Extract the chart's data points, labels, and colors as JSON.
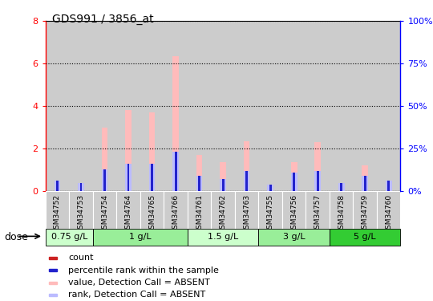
{
  "title": "GDS991 / 3856_at",
  "samples": [
    "GSM34752",
    "GSM34753",
    "GSM34754",
    "GSM34764",
    "GSM34765",
    "GSM34766",
    "GSM34761",
    "GSM34762",
    "GSM34763",
    "GSM34755",
    "GSM34756",
    "GSM34757",
    "GSM34758",
    "GSM34759",
    "GSM34760"
  ],
  "count_values": [
    0.08,
    0.08,
    0.08,
    0.08,
    0.08,
    0.08,
    0.08,
    0.08,
    0.08,
    0.08,
    0.08,
    0.08,
    0.08,
    0.08,
    0.08
  ],
  "rank_values": [
    6,
    5,
    13,
    16,
    16,
    23,
    9,
    7,
    12,
    4,
    11,
    12,
    5,
    9,
    6
  ],
  "absent_value": [
    0.18,
    0.18,
    3.0,
    3.8,
    3.7,
    6.35,
    1.7,
    1.35,
    2.35,
    0.3,
    1.35,
    2.3,
    0.18,
    1.2,
    0.18
  ],
  "absent_rank": [
    6,
    5,
    13,
    16,
    16,
    23,
    9,
    7,
    12,
    4,
    11,
    12,
    5,
    9,
    6
  ],
  "groups": [
    {
      "label": "0.75 g/L",
      "start": 0,
      "end": 2,
      "color": "#ccffcc"
    },
    {
      "label": "1 g/L",
      "start": 2,
      "end": 6,
      "color": "#99ee99"
    },
    {
      "label": "1.5 g/L",
      "start": 6,
      "end": 9,
      "color": "#ccffcc"
    },
    {
      "label": "3 g/L",
      "start": 9,
      "end": 12,
      "color": "#99ee99"
    },
    {
      "label": "5 g/L",
      "start": 12,
      "end": 15,
      "color": "#33cc33"
    }
  ],
  "ylim_left": [
    0,
    8
  ],
  "ylim_right": [
    0,
    100
  ],
  "yticks_left": [
    0,
    2,
    4,
    6,
    8
  ],
  "yticks_right": [
    0,
    25,
    50,
    75,
    100
  ],
  "color_count": "#cc2222",
  "color_rank": "#2222cc",
  "color_absent_value": "#ffbbbb",
  "color_absent_rank": "#bbbbff",
  "bar_bg_color": "#cccccc",
  "legend_items": [
    {
      "color": "#cc2222",
      "label": "count"
    },
    {
      "color": "#2222cc",
      "label": "percentile rank within the sample"
    },
    {
      "color": "#ffbbbb",
      "label": "value, Detection Call = ABSENT"
    },
    {
      "color": "#bbbbff",
      "label": "rank, Detection Call = ABSENT"
    }
  ]
}
